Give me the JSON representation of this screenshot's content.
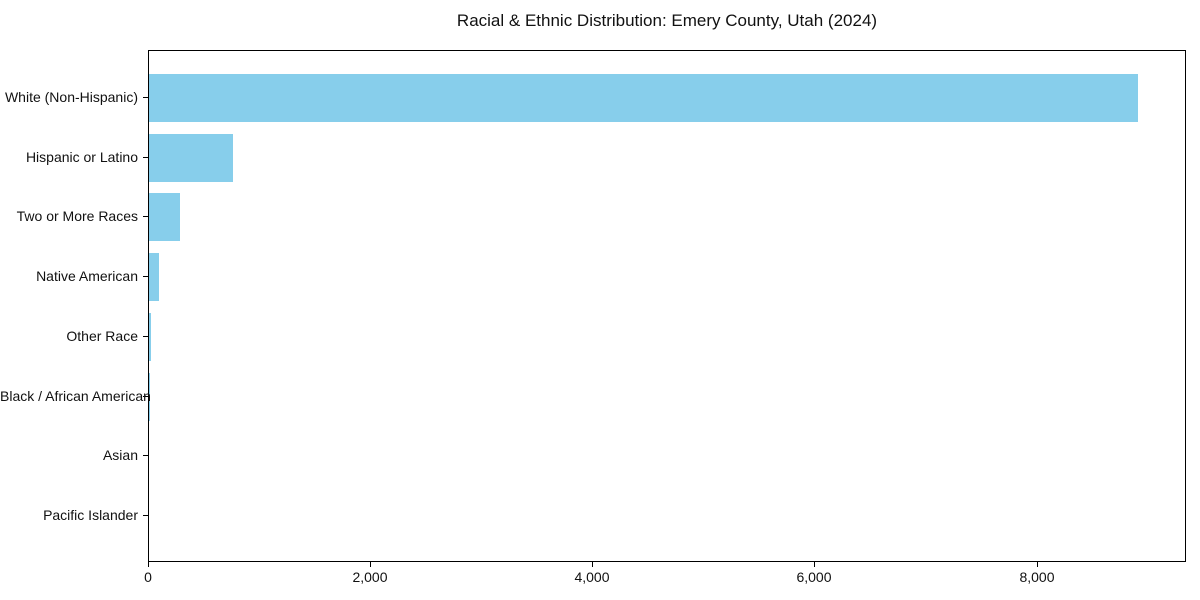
{
  "figure": {
    "background": "#ffffff",
    "axis_color": "#000000"
  },
  "chart_data": {
    "type": "bar",
    "orientation": "horizontal",
    "title": "Racial & Ethnic Distribution: Emery County, Utah (2024)",
    "categories": [
      "White (Non-Hispanic)",
      "Hispanic or Latino",
      "Two or More Races",
      "Native American",
      "Other Race",
      "Black / African American",
      "Asian",
      "Pacific Islander"
    ],
    "values": [
      8900,
      760,
      280,
      90,
      15,
      8,
      4,
      2
    ],
    "xlabel": "",
    "ylabel": "",
    "xlim": [
      0,
      9345
    ],
    "xticks": {
      "values": [
        0,
        2000,
        4000,
        6000,
        8000
      ],
      "labels": [
        "0",
        "2,000",
        "4,000",
        "6,000",
        "8,000"
      ]
    },
    "bar_color": "#87CEEB",
    "grid": false,
    "legend_position": "none"
  }
}
